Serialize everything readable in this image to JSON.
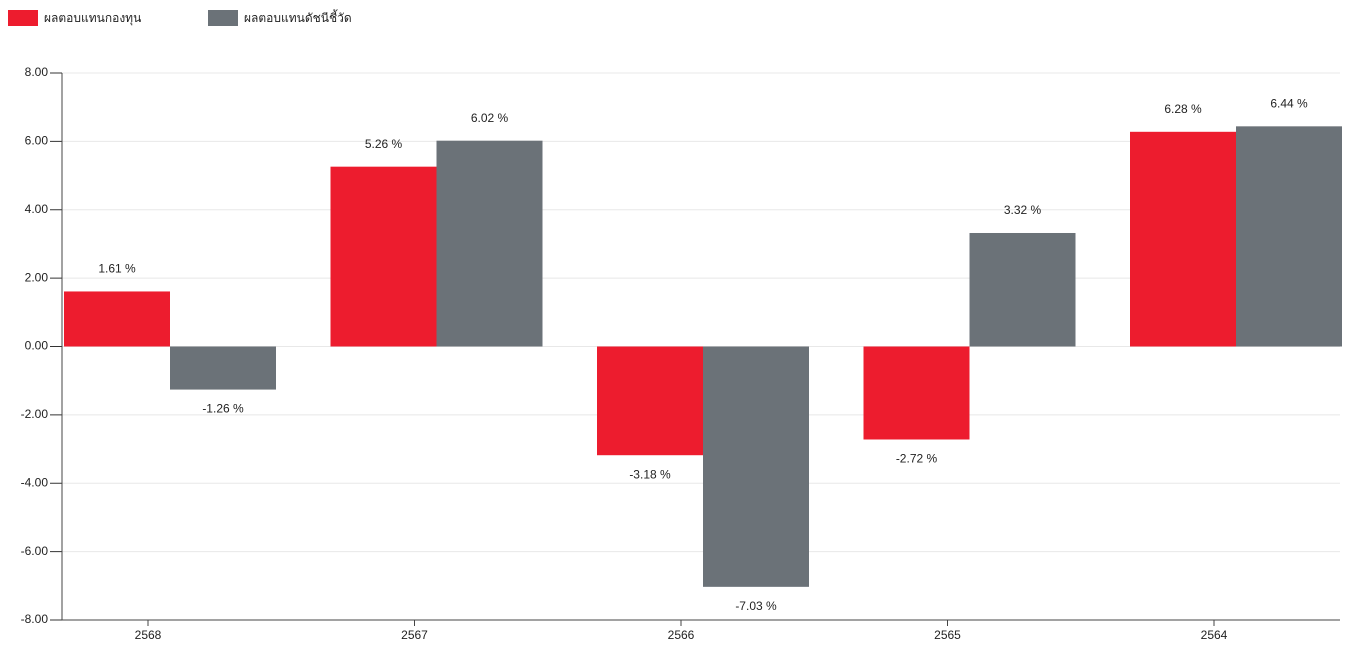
{
  "chart_data": {
    "type": "bar",
    "categories": [
      "2568",
      "2567",
      "2566",
      "2565",
      "2564"
    ],
    "series": [
      {
        "name": "ผลตอบแทนกองทุน",
        "color": "#ed1c2e",
        "values": [
          1.61,
          5.26,
          -3.18,
          -2.72,
          6.28
        ],
        "value_labels": [
          "1.61 %",
          "5.26 %",
          "-3.18 %",
          "-2.72 %",
          "6.28 %"
        ]
      },
      {
        "name": "ผลตอบแทนดัชนีชี้วัด",
        "color": "#6b7278",
        "values": [
          -1.26,
          6.02,
          -7.03,
          3.32,
          6.44
        ],
        "value_labels": [
          "-1.26 %",
          "6.02 %",
          "-7.03 %",
          "3.32 %",
          "6.44 %"
        ]
      }
    ],
    "ylim": [
      -8,
      8
    ],
    "yticks": [
      {
        "value": -8,
        "label": "-8.00"
      },
      {
        "value": -6,
        "label": "-6.00"
      },
      {
        "value": -4,
        "label": "-4.00"
      },
      {
        "value": -2,
        "label": "-2.00"
      },
      {
        "value": 0,
        "label": "0.00"
      },
      {
        "value": 2,
        "label": "2.00"
      },
      {
        "value": 4,
        "label": "4.00"
      },
      {
        "value": 6,
        "label": "6.00"
      },
      {
        "value": 8,
        "label": "8.00"
      }
    ],
    "grid": true,
    "legend": "top-left"
  }
}
